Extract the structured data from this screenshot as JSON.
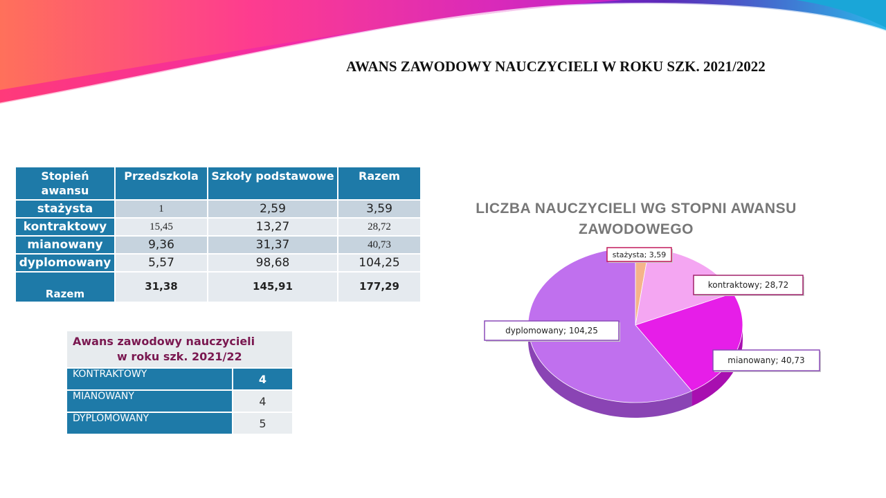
{
  "slide": {
    "title": "AWANS ZAWODOWY NAUCZYCIELI W ROKU SZK. 2021/2022"
  },
  "table1": {
    "headers": [
      "Stopień awansu",
      "Przedszkola",
      "Szkoły podstawowe",
      "Razem"
    ],
    "rows": [
      {
        "label": "stażysta",
        "przedszkola": "1",
        "szkoly": "2,59",
        "razem": "3,59"
      },
      {
        "label": "kontraktowy",
        "przedszkola": "15,45",
        "szkoly": "13,27",
        "razem": "28,72"
      },
      {
        "label": "mianowany",
        "przedszkola": "9,36",
        "szkoly": "31,37",
        "razem": "40,73"
      },
      {
        "label": "dyplomowany",
        "przedszkola": "5,57",
        "szkoly": "98,68",
        "razem": "104,25"
      }
    ],
    "total": {
      "label": "Razem",
      "przedszkola": "31,38",
      "szkoly": "145,91",
      "razem": "177,29"
    }
  },
  "table2": {
    "title_line1": "Awans zawodowy nauczycieli",
    "title_line2": "w roku szk.  2021/22",
    "rows": [
      {
        "label": "KONTRAKTOWY",
        "value": "4"
      },
      {
        "label": "MIANOWANY",
        "value": "4"
      },
      {
        "label": "DYPLOMOWANY",
        "value": "5"
      }
    ]
  },
  "chart_data": {
    "type": "pie",
    "title": "LICZBA NAUCZYCIELI WG STOPNI AWANSU ZAWODOWEGO",
    "title_line1": "LICZBA NAUCZYCIELI WG STOPNI AWANSU",
    "title_line2": "ZAWODOWEGO",
    "categories": [
      "stażysta",
      "kontraktowy",
      "mianowany",
      "dyplomowany"
    ],
    "values": [
      3.59,
      28.72,
      40.73,
      104.25
    ],
    "labels": [
      "stażysta; 3,59",
      "kontraktowy; 28,72",
      "mianowany; 40,73",
      "dyplomowany; 104,25"
    ],
    "colors": [
      "#f5b48a",
      "#f4a6f2",
      "#e61ee8",
      "#c070ee"
    ],
    "side_colors": [
      "#c88a60",
      "#c27fc0",
      "#a80fb0",
      "#8a44b4"
    ],
    "label_border_colors": [
      "#c2185b",
      "#a0206a",
      "#8a4ab8",
      "#8a4ab8"
    ],
    "style": "3d"
  }
}
